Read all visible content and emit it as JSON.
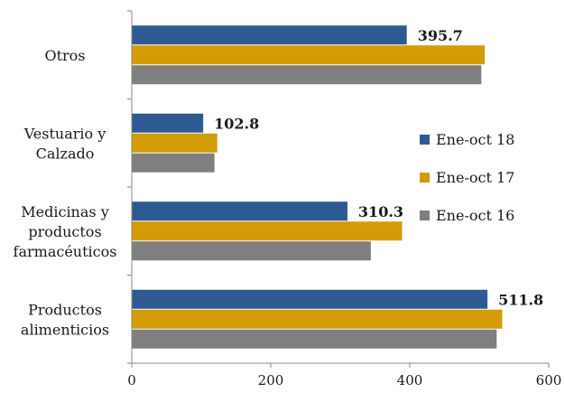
{
  "chart_data": {
    "type": "bar",
    "orientation": "horizontal",
    "categories": [
      [
        "Otros"
      ],
      [
        "Vestuario y",
        "Calzado"
      ],
      [
        "Medicinas y",
        "productos",
        "farmacéuticos"
      ],
      [
        "Productos",
        "alimenticios"
      ]
    ],
    "series": [
      {
        "name": "Ene-oct 18",
        "color": "#2e5a94",
        "values": [
          395.7,
          102.8,
          310.3,
          511.8
        ],
        "labels": [
          "395.7",
          "102.8",
          "310.3",
          "511.8"
        ]
      },
      {
        "name": "Ene-oct 17",
        "color": "#d39b05",
        "values": [
          508,
          123,
          389,
          533
        ]
      },
      {
        "name": "Ene-oct 16",
        "color": "#7f7f7f",
        "values": [
          503,
          119,
          344,
          525
        ]
      }
    ],
    "x_ticks": [
      "0",
      "200",
      "400",
      "600"
    ],
    "xlim": [
      0,
      600
    ],
    "title": "",
    "xlabel": "",
    "ylabel": "",
    "grid": false,
    "legend_position": "right"
  }
}
